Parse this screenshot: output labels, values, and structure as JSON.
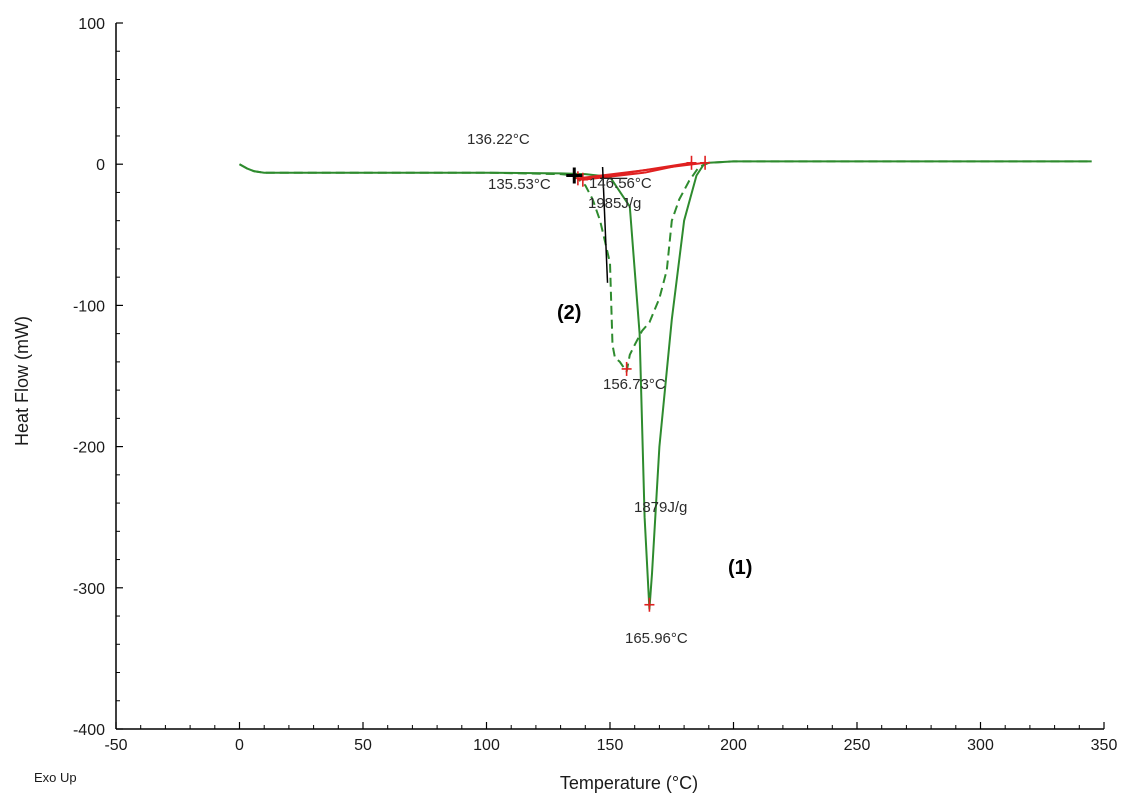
{
  "chart_data": {
    "type": "line",
    "xlabel": "Temperature (°C)",
    "ylabel": "Heat Flow (mW)",
    "xlim": [
      -50,
      350
    ],
    "ylim": [
      -400,
      100
    ],
    "x_ticks": [
      -50,
      0,
      50,
      100,
      150,
      200,
      250,
      300,
      350
    ],
    "y_ticks": [
      100,
      0,
      -100,
      -200,
      -300,
      -400
    ],
    "grid": false,
    "corner_label": "Exo Up",
    "colors": {
      "curves": "#2e8b2e",
      "markers": "#e02020",
      "tangent": "#000000"
    },
    "series": [
      {
        "style": "solid",
        "x": [
          0,
          3,
          6,
          10,
          30,
          60,
          100,
          130,
          140,
          150,
          158,
          162,
          164,
          165.96,
          167,
          170,
          175,
          180,
          185,
          188,
          190,
          200,
          250,
          300,
          345
        ],
        "y": [
          0,
          -3,
          -5,
          -6,
          -6,
          -6,
          -6,
          -6.5,
          -7,
          -9,
          -30,
          -120,
          -250,
          -315,
          -290,
          -200,
          -110,
          -40,
          -8,
          0,
          1,
          2,
          2,
          2,
          2
        ]
      },
      {
        "style": "dashed",
        "x": [
          0,
          3,
          6,
          10,
          30,
          60,
          100,
          130,
          135.53,
          140,
          143,
          146,
          148,
          150,
          151,
          152,
          154,
          156.73,
          158,
          160,
          163,
          166,
          170,
          173,
          175,
          178,
          182,
          186,
          190,
          200,
          250,
          300,
          345
        ],
        "y": [
          0,
          -3,
          -5,
          -6,
          -6,
          -6,
          -6,
          -7,
          -8,
          -15,
          -25,
          -40,
          -55,
          -70,
          -128,
          -137,
          -140,
          -147,
          -135,
          -128,
          -118,
          -112,
          -95,
          -75,
          -40,
          -25,
          -12,
          -2,
          1,
          2,
          2,
          2,
          2
        ]
      }
    ],
    "annotations": [
      {
        "text": "136.22°C",
        "x": 136.22,
        "y": 14
      },
      {
        "text": "135.53°C",
        "x": 135.53,
        "y": -8
      },
      {
        "text": "146.56°C",
        "x": 146.56,
        "y": -10
      },
      {
        "text": "1985J/g",
        "x": 143,
        "y": -25
      },
      {
        "text": "156.73°C",
        "x": 156.73,
        "y": -147
      },
      {
        "text": "1879J/g",
        "x": 166,
        "y": -245
      },
      {
        "text": "165.96°C",
        "x": 165.96,
        "y": -315
      }
    ],
    "curve_labels": [
      "(1)",
      "(2)"
    ]
  }
}
